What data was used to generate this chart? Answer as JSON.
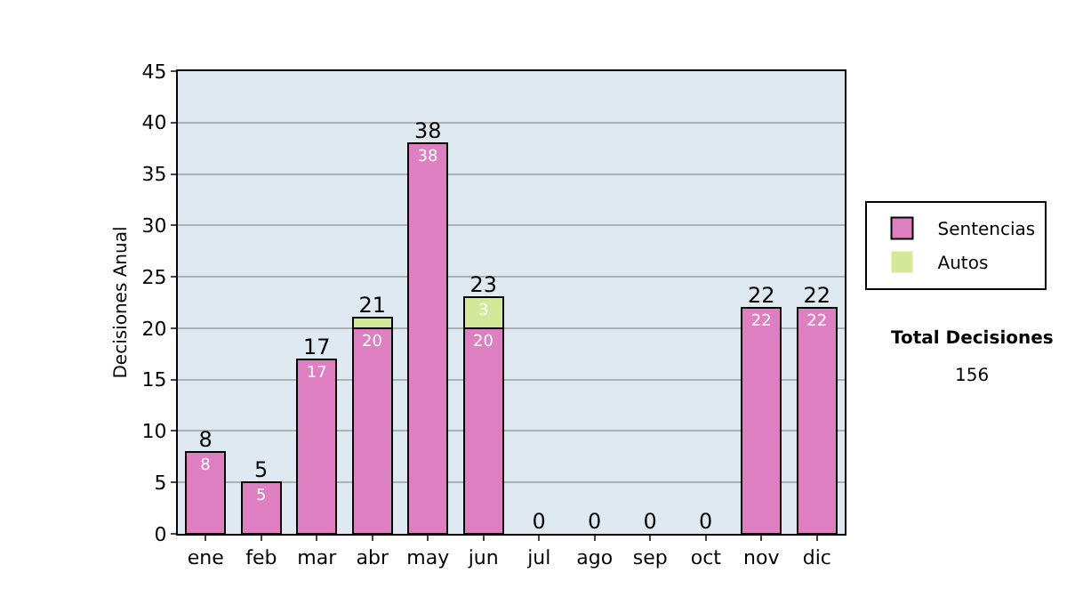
{
  "chart_data": {
    "type": "bar",
    "stacked": true,
    "ylabel": "Decisiones Anual",
    "categories": [
      "ene",
      "feb",
      "mar",
      "abr",
      "may",
      "jun",
      "jul",
      "ago",
      "sep",
      "oct",
      "nov",
      "dic"
    ],
    "series": [
      {
        "name": "Sentencias",
        "color": "#dd7fc0",
        "values": [
          8,
          5,
          17,
          20,
          38,
          20,
          0,
          0,
          0,
          0,
          22,
          22
        ],
        "value_labels": [
          "8",
          "5",
          "17",
          "20",
          "38",
          "20",
          null,
          null,
          null,
          null,
          "22",
          "22"
        ]
      },
      {
        "name": "Autos",
        "color": "#d4e89a",
        "values": [
          0,
          0,
          0,
          1,
          0,
          3,
          0,
          0,
          0,
          0,
          0,
          0
        ],
        "value_labels": [
          null,
          null,
          null,
          null,
          null,
          "3",
          null,
          null,
          null,
          null,
          null,
          null
        ]
      }
    ],
    "totals": [
      "8",
      "5",
      "17",
      "21",
      "38",
      "23",
      "0",
      "0",
      "0",
      "0",
      "22",
      "22"
    ],
    "ylim": [
      0,
      45
    ],
    "yticks": [
      0,
      5,
      10,
      15,
      20,
      25,
      30,
      35,
      40,
      45
    ],
    "grid": "y",
    "legend": "right",
    "annotations": [
      "Total Decisiones",
      "156"
    ]
  }
}
